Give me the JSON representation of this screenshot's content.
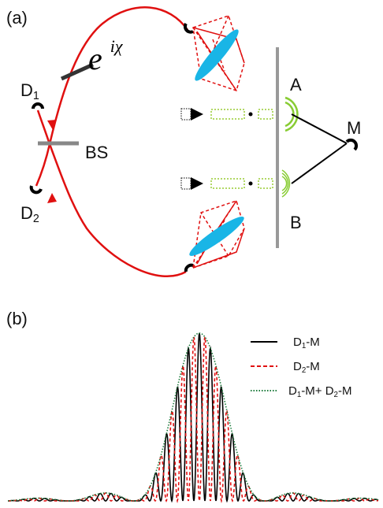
{
  "panel_a": {
    "label": "(a)",
    "phase": {
      "base": "e",
      "exponent": "iχ"
    },
    "detector_1": {
      "main": "D",
      "sub": "1"
    },
    "detector_2": {
      "main": "D",
      "sub": "2"
    },
    "beam_splitter": "BS",
    "pinhole_a": "A",
    "pinhole_b": "B",
    "detector_m": "M"
  },
  "panel_b": {
    "label": "(b)",
    "legend": [
      {
        "parts": [
          "D",
          "1",
          "-M"
        ]
      },
      {
        "parts": [
          "D",
          "2",
          "-M"
        ]
      },
      {
        "parts": [
          "D",
          "1",
          "-M+ D",
          "2",
          "-M"
        ]
      }
    ]
  }
}
